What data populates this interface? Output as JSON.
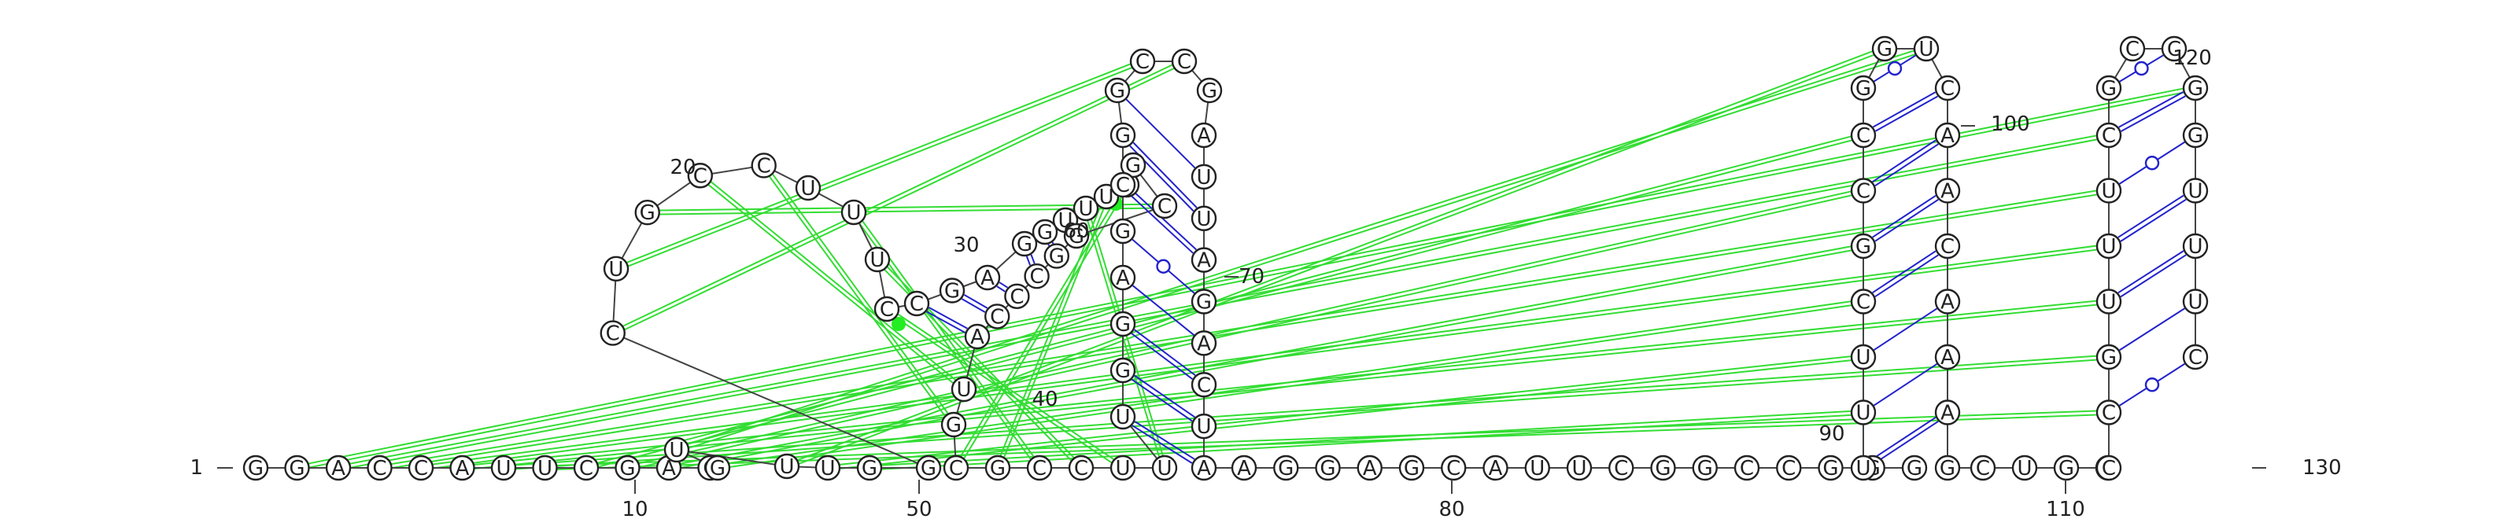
{
  "sequence": "GGACCAUUCGACGUUUGGCUGCCUUUCCGAGGUUUAGCGGCCCAUGCGCCUUUGGAGCGGCCGAUUAGACUAAGGAGCAUUCGGCCGGGUUUCGCCGGUCAACAAAGCUGGCCGUUUCGCCGGUUUC",
  "numbering": {
    "labels": [
      "1",
      "10",
      "20",
      "30",
      "40",
      "50",
      "60",
      "70",
      "80",
      "90",
      "100",
      "110",
      "120",
      "130"
    ]
  },
  "colors": {
    "canonical_pair": "#2222cc",
    "tertiary_interaction": "#33dd33",
    "backbone": "#444444"
  }
}
